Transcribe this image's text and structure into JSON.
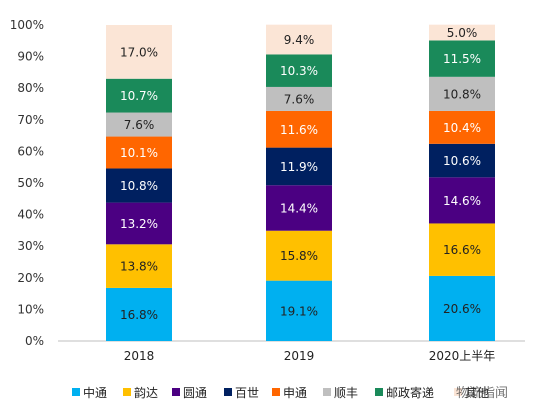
{
  "watermark": "物流指闻",
  "chart_data": {
    "type": "bar",
    "stacked": true,
    "percent": true,
    "categories": [
      "2018",
      "2019",
      "2020上半年"
    ],
    "ylim": [
      0,
      100
    ],
    "yticks": [
      "0%",
      "10%",
      "20%",
      "30%",
      "40%",
      "50%",
      "60%",
      "70%",
      "80%",
      "90%",
      "100%"
    ],
    "grid": false,
    "legend_position": "bottom",
    "series": [
      {
        "name": "中通",
        "color": "#00B0F0",
        "text_color": "#222222",
        "values": [
          16.8,
          19.1,
          20.6
        ],
        "labels": [
          "16.8%",
          "19.1%",
          "20.6%"
        ]
      },
      {
        "name": "韵达",
        "color": "#FFC000",
        "text_color": "#222222",
        "values": [
          13.8,
          15.8,
          16.6
        ],
        "labels": [
          "13.8%",
          "15.8%",
          "16.6%"
        ]
      },
      {
        "name": "圆通",
        "color": "#4B0082",
        "text_color": "#ffffff",
        "values": [
          13.2,
          14.4,
          14.6
        ],
        "labels": [
          "13.2%",
          "14.4%",
          "14.6%"
        ]
      },
      {
        "name": "百世",
        "color": "#002060",
        "text_color": "#ffffff",
        "values": [
          10.8,
          11.9,
          10.6
        ],
        "labels": [
          "10.8%",
          "11.9%",
          "10.6%"
        ]
      },
      {
        "name": "申通",
        "color": "#FF6600",
        "text_color": "#ffffff",
        "values": [
          10.1,
          11.6,
          10.4
        ],
        "labels": [
          "10.1%",
          "11.6%",
          "10.4%"
        ]
      },
      {
        "name": "顺丰",
        "color": "#BFBFBF",
        "text_color": "#222222",
        "values": [
          7.6,
          7.6,
          10.8
        ],
        "labels": [
          "7.6%",
          "7.6%",
          "10.8%"
        ]
      },
      {
        "name": "邮政寄递",
        "color": "#1A8A5A",
        "text_color": "#ffffff",
        "values": [
          10.7,
          10.3,
          11.5
        ],
        "labels": [
          "10.7%",
          "10.3%",
          "11.5%"
        ]
      },
      {
        "name": "其他",
        "color": "#FBE5D6",
        "text_color": "#222222",
        "values": [
          17.0,
          9.4,
          5.0
        ],
        "labels": [
          "17.0%",
          "9.4%",
          "5.0%"
        ]
      }
    ]
  }
}
